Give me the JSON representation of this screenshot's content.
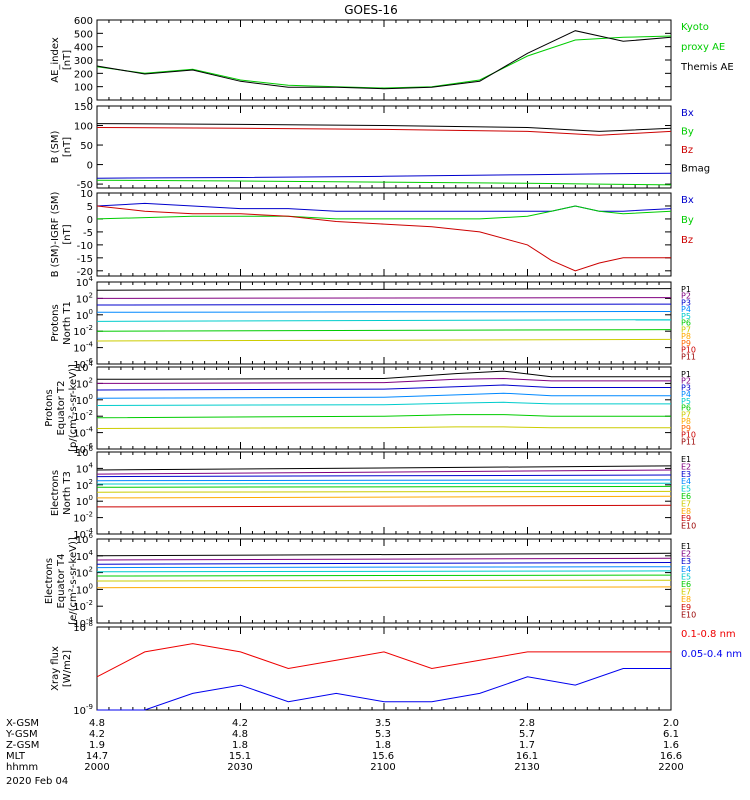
{
  "title": "GOES-16",
  "x_ticks": [
    "2000",
    "2030",
    "2100",
    "2130",
    "2200"
  ],
  "ephemeris": {
    "rows": [
      {
        "label": "X-GSM",
        "values": [
          "4.8",
          "4.2",
          "3.5",
          "2.8",
          "2.0"
        ]
      },
      {
        "label": "Y-GSM",
        "values": [
          "4.2",
          "4.8",
          "5.3",
          "5.7",
          "6.1"
        ]
      },
      {
        "label": "Z-GSM",
        "values": [
          "1.9",
          "1.8",
          "1.8",
          "1.7",
          "1.6"
        ]
      },
      {
        "label": "MLT",
        "values": [
          "14.7",
          "15.1",
          "15.6",
          "16.1",
          "16.6"
        ]
      },
      {
        "label": "hhmm",
        "values": [
          "2000",
          "2030",
          "2100",
          "2130",
          "2200"
        ]
      }
    ],
    "date": "2020 Feb 04"
  },
  "chart_data": [
    {
      "type": "line",
      "id": "ae",
      "ylabel_lines": [
        "AE_index",
        "[nT]"
      ],
      "ylim": [
        0,
        600
      ],
      "yticks": [
        "0",
        "100",
        "200",
        "300",
        "400",
        "500",
        "600"
      ],
      "x": [
        0,
        10,
        20,
        30,
        40,
        50,
        60,
        70,
        80,
        90,
        100,
        110,
        120
      ],
      "series": [
        {
          "name": "Kyoto proxy AE",
          "color": "#00cc00",
          "values": [
            250,
            200,
            230,
            150,
            110,
            100,
            90,
            100,
            150,
            330,
            450,
            470,
            480
          ]
        },
        {
          "name": "Themis AE",
          "color": "#000000",
          "values": [
            255,
            195,
            225,
            140,
            95,
            95,
            85,
            95,
            140,
            350,
            520,
            440,
            470
          ]
        }
      ],
      "legend_lines": [
        {
          "text": "Kyoto",
          "color": "#00cc00"
        },
        {
          "text": "proxy AE",
          "color": "#00cc00"
        },
        {
          "text": "Themis AE",
          "color": "#000000"
        }
      ]
    },
    {
      "type": "line",
      "id": "bsm",
      "ylabel_lines": [
        "B (SM)",
        "[nT]"
      ],
      "ylim": [
        -60,
        150
      ],
      "yticks": [
        "-50",
        "0",
        "50",
        "100",
        "150"
      ],
      "x": [
        0,
        30,
        60,
        90,
        105,
        120
      ],
      "series": [
        {
          "name": "Bx",
          "color": "#0000cc",
          "values": [
            -35,
            -33,
            -30,
            -26,
            -24,
            -22
          ]
        },
        {
          "name": "By",
          "color": "#00cc00",
          "values": [
            -40,
            -42,
            -45,
            -48,
            -50,
            -52
          ]
        },
        {
          "name": "Bz",
          "color": "#cc0000",
          "values": [
            95,
            93,
            90,
            85,
            75,
            85
          ]
        },
        {
          "name": "Bmag",
          "color": "#000000",
          "values": [
            105,
            103,
            100,
            95,
            85,
            93
          ]
        }
      ],
      "legend_lines": [
        {
          "text": "Bx",
          "color": "#0000cc"
        },
        {
          "text": "By",
          "color": "#00cc00"
        },
        {
          "text": "Bz",
          "color": "#cc0000"
        },
        {
          "text": "Bmag",
          "color": "#000000"
        }
      ]
    },
    {
      "type": "line",
      "id": "bigrf",
      "ylabel_lines": [
        "B (SM)-IGRF (SM)",
        "[nT]"
      ],
      "ylim": [
        -22,
        10
      ],
      "yticks": [
        "-20",
        "-15",
        "-10",
        "-5",
        "0",
        "5",
        "10"
      ],
      "x": [
        0,
        10,
        20,
        30,
        40,
        50,
        60,
        70,
        80,
        90,
        95,
        100,
        105,
        110,
        120
      ],
      "series": [
        {
          "name": "Bx",
          "color": "#0000cc",
          "values": [
            5,
            6,
            5,
            4,
            4,
            3,
            3,
            3,
            3,
            3,
            3,
            5,
            3,
            3,
            4
          ]
        },
        {
          "name": "By",
          "color": "#00cc00",
          "values": [
            0,
            0.5,
            1,
            1,
            1,
            0,
            0,
            0,
            0,
            1,
            3,
            5,
            3,
            2,
            3
          ]
        },
        {
          "name": "Bz",
          "color": "#cc0000",
          "values": [
            5,
            3,
            2,
            2,
            1,
            -1,
            -2,
            -3,
            -5,
            -10,
            -16,
            -20,
            -17,
            -15,
            -15
          ]
        }
      ],
      "legend_lines": [
        {
          "text": "Bx",
          "color": "#0000cc"
        },
        {
          "text": "By",
          "color": "#00cc00"
        },
        {
          "text": "Bz",
          "color": "#cc0000"
        }
      ]
    },
    {
      "type": "line",
      "id": "pn",
      "log": true,
      "ylabel_lines": [
        "Protons",
        "North T1"
      ],
      "ylim": [
        -6,
        4
      ],
      "ytick_exps": [
        -6,
        -4,
        -2,
        0,
        2,
        4
      ],
      "x": [
        0,
        120
      ],
      "series": [
        {
          "name": "P1",
          "color": "#000000",
          "values": [
            3,
            3.2
          ]
        },
        {
          "name": "P2",
          "color": "#800080",
          "values": [
            2,
            2.1
          ]
        },
        {
          "name": "P3",
          "color": "#0000cc",
          "values": [
            1.2,
            1.3
          ]
        },
        {
          "name": "P4",
          "color": "#0088ff",
          "values": [
            0.3,
            0.4
          ]
        },
        {
          "name": "P5",
          "color": "#00cccc",
          "values": [
            -0.8,
            -0.6
          ]
        },
        {
          "name": "P6",
          "color": "#00cc00",
          "values": [
            -2,
            -1.8
          ]
        },
        {
          "name": "P7",
          "color": "#cccc00",
          "values": [
            -3.2,
            -3
          ]
        }
      ],
      "legend_lines": [
        {
          "text": "P1",
          "color": "#000000"
        },
        {
          "text": "P2",
          "color": "#800080"
        },
        {
          "text": "P3",
          "color": "#0000cc"
        },
        {
          "text": "P4",
          "color": "#0088ff"
        },
        {
          "text": "P5",
          "color": "#00cccc"
        },
        {
          "text": "P6",
          "color": "#00cc00"
        },
        {
          "text": "P7",
          "color": "#cccc00"
        },
        {
          "text": "P8",
          "color": "#ffaa00"
        },
        {
          "text": "P9",
          "color": "#ff6600"
        },
        {
          "text": "P10",
          "color": "#cc0000"
        },
        {
          "text": "P11",
          "color": "#990000"
        }
      ]
    },
    {
      "type": "line",
      "id": "pe",
      "log": true,
      "ylabel_lines": [
        "Protons",
        "Equator T2",
        "[p/(cm²-s-sr-keV)]"
      ],
      "ylim": [
        -6,
        4
      ],
      "ytick_exps": [
        -6,
        -4,
        -2,
        0,
        2,
        4
      ],
      "x": [
        0,
        60,
        75,
        85,
        95,
        120
      ],
      "series": [
        {
          "name": "P1",
          "color": "#000000",
          "values": [
            2.5,
            2.6,
            3.2,
            3.5,
            2.8,
            2.8
          ]
        },
        {
          "name": "P2",
          "color": "#800080",
          "values": [
            2,
            2.1,
            2.5,
            2.6,
            2.3,
            2.3
          ]
        },
        {
          "name": "P3",
          "color": "#0000cc",
          "values": [
            1.2,
            1.3,
            1.6,
            1.8,
            1.5,
            1.5
          ]
        },
        {
          "name": "P4",
          "color": "#0088ff",
          "values": [
            0.2,
            0.3,
            0.6,
            0.8,
            0.5,
            0.5
          ]
        },
        {
          "name": "P5",
          "color": "#00cccc",
          "values": [
            -0.7,
            -0.6,
            -0.4,
            -0.3,
            -0.5,
            -0.5
          ]
        },
        {
          "name": "P6",
          "color": "#00cc00",
          "values": [
            -2.2,
            -2,
            -1.8,
            -1.8,
            -2,
            -2
          ]
        },
        {
          "name": "P7",
          "color": "#cccc00",
          "values": [
            -3.5,
            -3.4,
            -3.3,
            -3.3,
            -3.4,
            -3.4
          ]
        }
      ],
      "legend_lines": [
        {
          "text": "P1",
          "color": "#000000"
        },
        {
          "text": "P2",
          "color": "#800080"
        },
        {
          "text": "P3",
          "color": "#0000cc"
        },
        {
          "text": "P4",
          "color": "#0088ff"
        },
        {
          "text": "P5",
          "color": "#00cccc"
        },
        {
          "text": "P6",
          "color": "#00cc00"
        },
        {
          "text": "P7",
          "color": "#cccc00"
        },
        {
          "text": "P8",
          "color": "#ffaa00"
        },
        {
          "text": "P9",
          "color": "#ff6600"
        },
        {
          "text": "P10",
          "color": "#cc0000"
        },
        {
          "text": "P11",
          "color": "#990000"
        }
      ]
    },
    {
      "type": "line",
      "id": "en",
      "log": true,
      "ylabel_lines": [
        "Electrons",
        "North T3"
      ],
      "ylim": [
        -4,
        6
      ],
      "ytick_exps": [
        -4,
        -2,
        0,
        2,
        4,
        6
      ],
      "x": [
        0,
        120
      ],
      "series": [
        {
          "name": "E1",
          "color": "#000000",
          "values": [
            3.8,
            4.3
          ]
        },
        {
          "name": "E2",
          "color": "#800080",
          "values": [
            3.3,
            3.8
          ]
        },
        {
          "name": "E3",
          "color": "#0000cc",
          "values": [
            3.0,
            3.2
          ]
        },
        {
          "name": "E4",
          "color": "#0088ff",
          "values": [
            2.5,
            2.6
          ]
        },
        {
          "name": "E5",
          "color": "#00cccc",
          "values": [
            2.1,
            2.2
          ]
        },
        {
          "name": "E6",
          "color": "#00cc00",
          "values": [
            1.7,
            1.8
          ]
        },
        {
          "name": "E7",
          "color": "#cccc00",
          "values": [
            1.1,
            1.2
          ]
        },
        {
          "name": "E8",
          "color": "#ffaa00",
          "values": [
            0.4,
            0.6
          ]
        },
        {
          "name": "E9",
          "color": "#cc0000",
          "values": [
            -0.7,
            -0.5
          ]
        }
      ],
      "legend_lines": [
        {
          "text": "E1",
          "color": "#000000"
        },
        {
          "text": "E2",
          "color": "#800080"
        },
        {
          "text": "E3",
          "color": "#0000cc"
        },
        {
          "text": "E4",
          "color": "#0088ff"
        },
        {
          "text": "E5",
          "color": "#00cccc"
        },
        {
          "text": "E6",
          "color": "#00cc00"
        },
        {
          "text": "E7",
          "color": "#cccc00"
        },
        {
          "text": "E8",
          "color": "#ffaa00"
        },
        {
          "text": "E9",
          "color": "#cc0000"
        },
        {
          "text": "E10",
          "color": "#990000"
        }
      ]
    },
    {
      "type": "line",
      "id": "ee",
      "log": true,
      "ylabel_lines": [
        "Electrons",
        "Equator T4",
        "[e/(cm²-s-sr-keV)]"
      ],
      "ylim": [
        -4,
        6
      ],
      "ytick_exps": [
        -4,
        -2,
        0,
        2,
        4,
        6
      ],
      "x": [
        0,
        120
      ],
      "series": [
        {
          "name": "E1",
          "color": "#000000",
          "values": [
            4.0,
            4.3
          ]
        },
        {
          "name": "E2",
          "color": "#800080",
          "values": [
            3.5,
            3.7
          ]
        },
        {
          "name": "E3",
          "color": "#0000cc",
          "values": [
            3.0,
            3.2
          ]
        },
        {
          "name": "E4",
          "color": "#0088ff",
          "values": [
            2.6,
            2.7
          ]
        },
        {
          "name": "E5",
          "color": "#00cccc",
          "values": [
            2.1,
            2.2
          ]
        },
        {
          "name": "E6",
          "color": "#00cc00",
          "values": [
            1.6,
            1.7
          ]
        },
        {
          "name": "E7",
          "color": "#cccc00",
          "values": [
            1.0,
            1.1
          ]
        },
        {
          "name": "E8",
          "color": "#ffaa00",
          "values": [
            0.2,
            0.3
          ]
        }
      ],
      "legend_lines": [
        {
          "text": "E1",
          "color": "#000000"
        },
        {
          "text": "E2",
          "color": "#800080"
        },
        {
          "text": "E3",
          "color": "#0000cc"
        },
        {
          "text": "E4",
          "color": "#0088ff"
        },
        {
          "text": "E5",
          "color": "#00cccc"
        },
        {
          "text": "E6",
          "color": "#00cc00"
        },
        {
          "text": "E7",
          "color": "#cccc00"
        },
        {
          "text": "E8",
          "color": "#ffaa00"
        },
        {
          "text": "E9",
          "color": "#cc0000"
        },
        {
          "text": "E10",
          "color": "#990000"
        }
      ]
    },
    {
      "type": "line",
      "id": "xray",
      "log": true,
      "ylabel_lines": [
        "Xray flux",
        "[W/m2]"
      ],
      "ylim": [
        -9,
        -8
      ],
      "ytick_exps": [
        -9,
        -8
      ],
      "x": [
        0,
        10,
        20,
        30,
        40,
        50,
        60,
        70,
        80,
        90,
        100,
        110,
        120
      ],
      "series": [
        {
          "name": "0.1-0.8 nm",
          "color": "#ee0000",
          "values": [
            -8.6,
            -8.3,
            -8.2,
            -8.3,
            -8.5,
            -8.4,
            -8.3,
            -8.5,
            -8.4,
            -8.3,
            -8.3,
            -8.3,
            -8.3
          ]
        },
        {
          "name": "0.05-0.4 nm",
          "color": "#0000ee",
          "values": [
            -9.0,
            -9.0,
            -8.8,
            -8.7,
            -8.9,
            -8.8,
            -8.9,
            -8.9,
            -8.8,
            -8.6,
            -8.7,
            -8.5,
            -8.5
          ]
        }
      ],
      "legend_lines": [
        {
          "text": "0.1-0.8 nm",
          "color": "#ee0000"
        },
        {
          "text": "0.05-0.4 nm",
          "color": "#0000ee"
        }
      ]
    }
  ]
}
